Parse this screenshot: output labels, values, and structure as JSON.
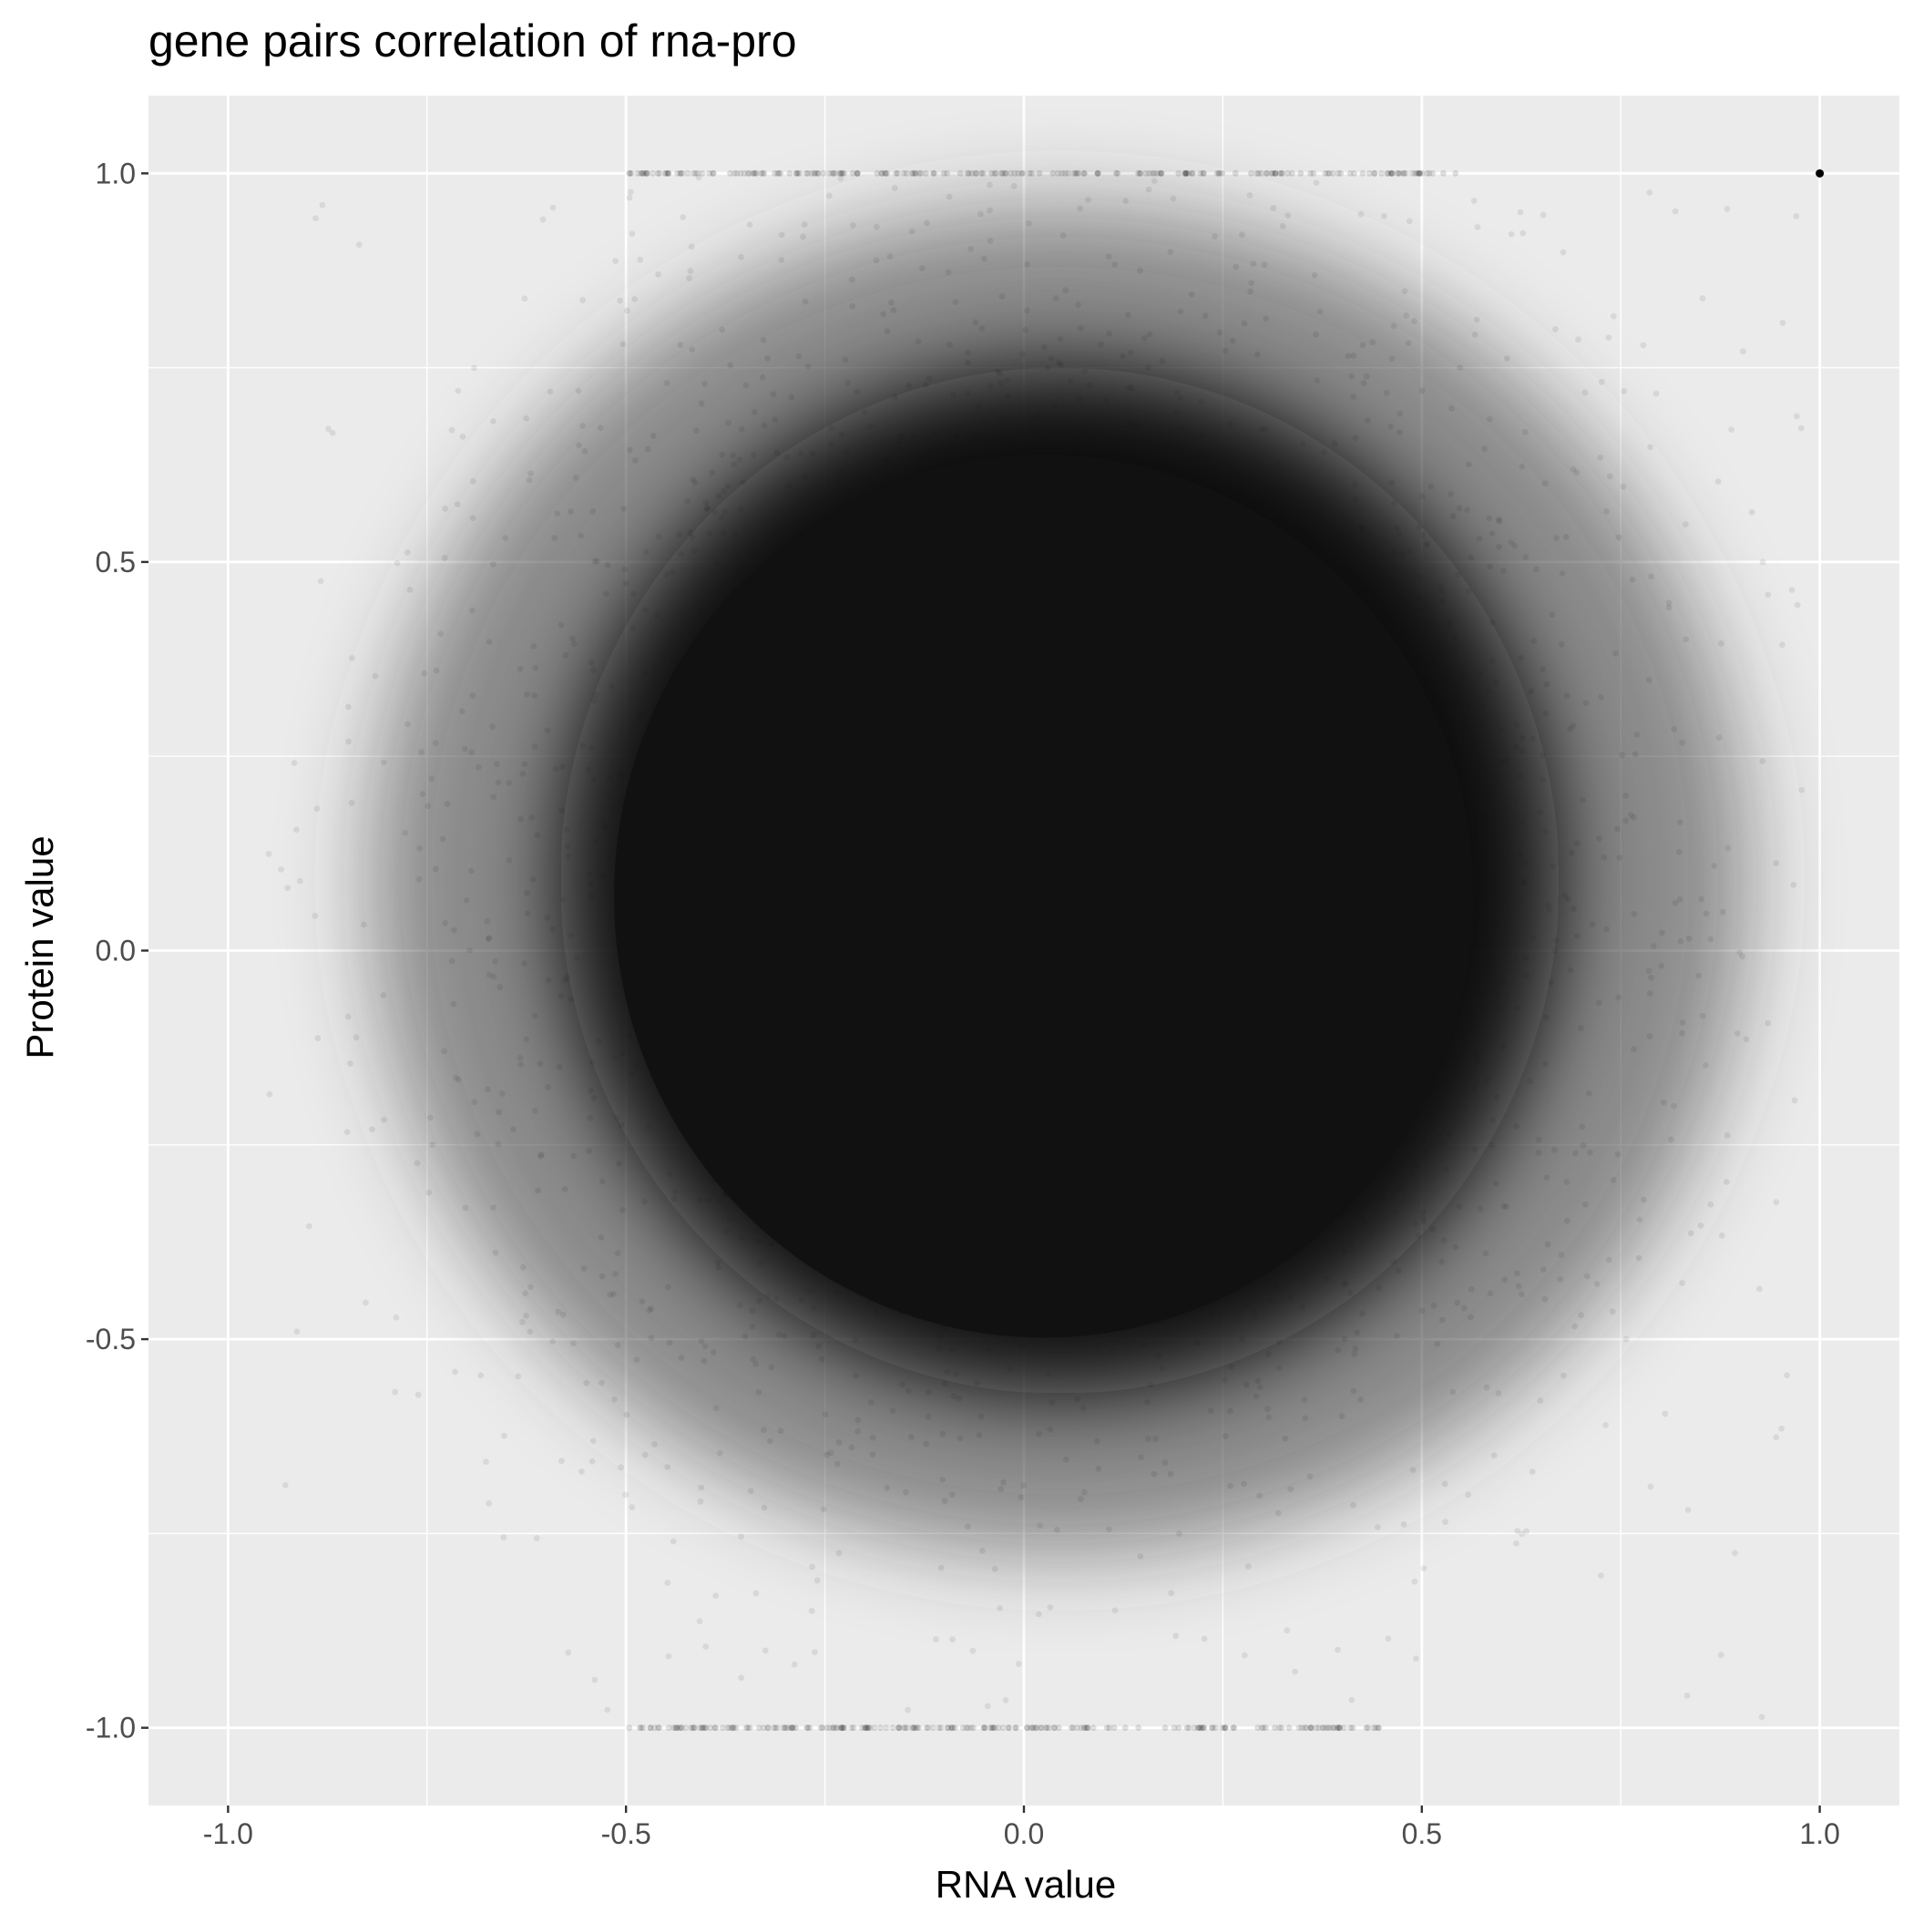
{
  "chart_data": {
    "type": "scatter",
    "title": "gene pairs correlation of rna-pro",
    "xlabel": "RNA value",
    "ylabel": "Protein value",
    "xlim": [
      -1.1,
      1.1
    ],
    "ylim": [
      -1.1,
      1.1
    ],
    "x_ticks": [
      {
        "value": -1.0,
        "label": "-1.0"
      },
      {
        "value": -0.5,
        "label": "-0.5"
      },
      {
        "value": 0.0,
        "label": "0.0"
      },
      {
        "value": 0.5,
        "label": "0.5"
      },
      {
        "value": 1.0,
        "label": "1.0"
      }
    ],
    "y_ticks": [
      {
        "value": 1.0,
        "label": "1.0"
      },
      {
        "value": 0.5,
        "label": "0.5"
      },
      {
        "value": 0.0,
        "label": "0.0"
      },
      {
        "value": -0.5,
        "label": "-0.5"
      },
      {
        "value": -1.0,
        "label": "-1.0"
      }
    ],
    "grid": true,
    "legend": "none",
    "point_color": "#000000",
    "point_alpha": 0.08,
    "panel_background": "#ebebeb",
    "grid_color": "#ffffff",
    "dense_region": {
      "x_range": [
        -0.63,
        0.72
      ],
      "y_range": [
        -0.62,
        0.8
      ],
      "fill": "#111111"
    },
    "outlier_points": [
      {
        "x": 1.0,
        "y": 1.0
      }
    ],
    "boundary_bands": [
      {
        "y": 1.0,
        "x_range": [
          -0.5,
          0.55
        ]
      },
      {
        "y": -1.0,
        "x_range": [
          -0.5,
          0.45
        ]
      }
    ]
  }
}
